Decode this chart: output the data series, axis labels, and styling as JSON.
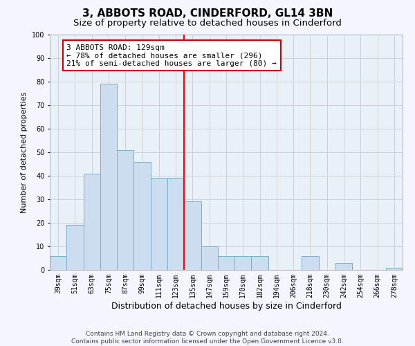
{
  "title": "3, ABBOTS ROAD, CINDERFORD, GL14 3BN",
  "subtitle": "Size of property relative to detached houses in Cinderford",
  "xlabel": "Distribution of detached houses by size in Cinderford",
  "ylabel": "Number of detached properties",
  "bar_labels": [
    "39sqm",
    "51sqm",
    "63sqm",
    "75sqm",
    "87sqm",
    "99sqm",
    "111sqm",
    "123sqm",
    "135sqm",
    "147sqm",
    "159sqm",
    "170sqm",
    "182sqm",
    "194sqm",
    "206sqm",
    "218sqm",
    "230sqm",
    "242sqm",
    "254sqm",
    "266sqm",
    "278sqm"
  ],
  "bar_values": [
    6,
    19,
    41,
    79,
    51,
    46,
    39,
    39,
    29,
    10,
    6,
    6,
    6,
    0,
    0,
    6,
    0,
    3,
    0,
    0,
    1
  ],
  "bar_color": "#ccddf0",
  "bar_edge_color": "#7aacce",
  "property_line_x": 7.5,
  "annotation_text": "3 ABBOTS ROAD: 129sqm\n← 78% of detached houses are smaller (296)\n21% of semi-detached houses are larger (80) →",
  "annotation_box_color": "#ffffff",
  "annotation_box_edge_color": "#cc0000",
  "ylim": [
    0,
    100
  ],
  "yticks": [
    0,
    10,
    20,
    30,
    40,
    50,
    60,
    70,
    80,
    90,
    100
  ],
  "grid_color": "#cccccc",
  "background_color": "#e8f0f8",
  "fig_background_color": "#f5f5ff",
  "footer_text": "Contains HM Land Registry data © Crown copyright and database right 2024.\nContains public sector information licensed under the Open Government Licence v3.0.",
  "title_fontsize": 11,
  "subtitle_fontsize": 9.5,
  "xlabel_fontsize": 9,
  "ylabel_fontsize": 8,
  "tick_fontsize": 7,
  "annotation_fontsize": 8,
  "footer_fontsize": 6.5
}
